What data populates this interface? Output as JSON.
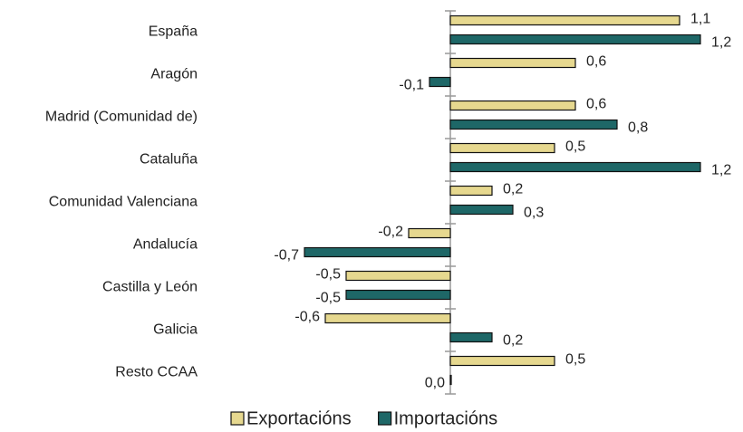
{
  "chart_data": {
    "type": "hbar",
    "categories": [
      "España",
      "Aragón",
      "Madrid (Comunidad de)",
      "Cataluña",
      "Comunidad Valenciana",
      "Andalucía",
      "Castilla y León",
      "Galicia",
      "Resto CCAA"
    ],
    "series": [
      {
        "name": "Exportacións",
        "color": "#e6d88f",
        "values": [
          1.1,
          0.6,
          0.6,
          0.5,
          0.2,
          -0.2,
          -0.5,
          -0.6,
          0.5
        ],
        "value_labels": [
          "1,1",
          "0,6",
          "0,6",
          "0,5",
          "0,2",
          "-0,2",
          "-0,5",
          "-0,6",
          "0,5"
        ]
      },
      {
        "name": "Importacións",
        "color": "#1e6767",
        "values": [
          1.2,
          -0.1,
          0.8,
          1.2,
          0.3,
          -0.7,
          -0.5,
          0.2,
          0.0
        ],
        "value_labels": [
          "1,2",
          "-0,1",
          "0,8",
          "1,2",
          "0,3",
          "-0,7",
          "-0,5",
          "0,2",
          "0,0"
        ]
      }
    ],
    "xlim": [
      -0.8,
      1.3
    ],
    "grid": false,
    "legend": "bottom"
  }
}
